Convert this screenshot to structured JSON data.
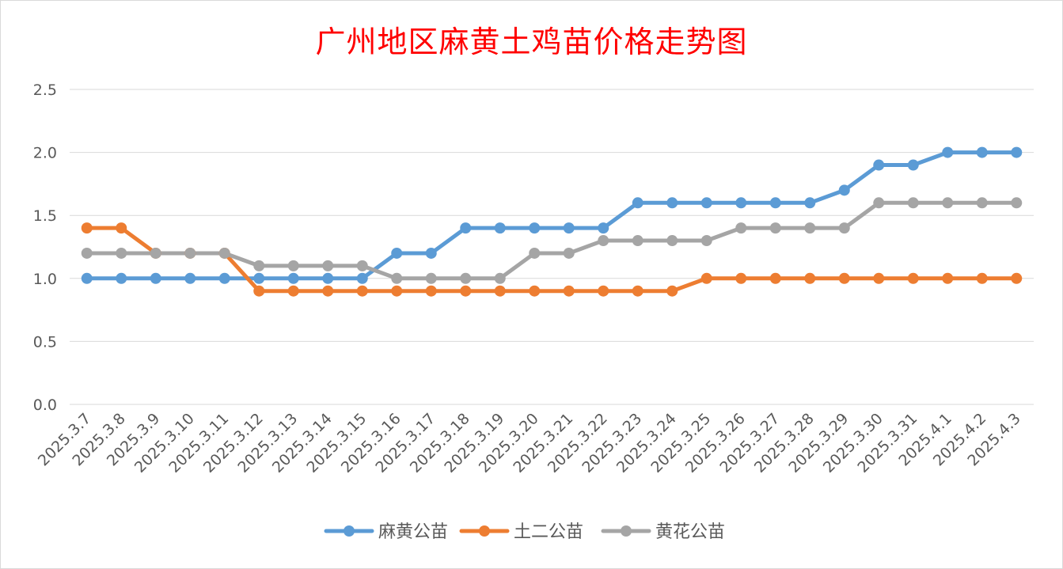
{
  "chart_data": {
    "type": "line",
    "title": "广州地区麻黄土鸡苗价格走势图",
    "xlabel": "",
    "ylabel": "",
    "ylim": [
      0,
      2.5
    ],
    "yticks": [
      "0.0",
      "0.5",
      "1.0",
      "1.5",
      "2.0",
      "2.5"
    ],
    "grid": true,
    "legend_position": "bottom",
    "categories": [
      "2025.3.7",
      "2025.3.8",
      "2025.3.9",
      "2025.3.10",
      "2025.3.11",
      "2025.3.12",
      "2025.3.13",
      "2025.3.14",
      "2025.3.15",
      "2025.3.16",
      "2025.3.17",
      "2025.3.18",
      "2025.3.19",
      "2025.3.20",
      "2025.3.21",
      "2025.3.22",
      "2025.3.23",
      "2025.3.24",
      "2025.3.25",
      "2025.3.26",
      "2025.3.27",
      "2025.3.28",
      "2025.3.29",
      "2025.3.30",
      "2025.3.31",
      "2025.4.1",
      "2025.4.2",
      "2025.4.3"
    ],
    "series": [
      {
        "name": "麻黄公苗",
        "color": "#5b9bd5",
        "values": [
          1.0,
          1.0,
          1.0,
          1.0,
          1.0,
          1.0,
          1.0,
          1.0,
          1.0,
          1.2,
          1.2,
          1.4,
          1.4,
          1.4,
          1.4,
          1.4,
          1.6,
          1.6,
          1.6,
          1.6,
          1.6,
          1.6,
          1.7,
          1.9,
          1.9,
          2.0,
          2.0,
          2.0
        ]
      },
      {
        "name": "土二公苗",
        "color": "#ed7d31",
        "values": [
          1.4,
          1.4,
          1.2,
          1.2,
          1.2,
          0.9,
          0.9,
          0.9,
          0.9,
          0.9,
          0.9,
          0.9,
          0.9,
          0.9,
          0.9,
          0.9,
          0.9,
          0.9,
          1.0,
          1.0,
          1.0,
          1.0,
          1.0,
          1.0,
          1.0,
          1.0,
          1.0,
          1.0
        ]
      },
      {
        "name": "黄花公苗",
        "color": "#a5a5a5",
        "values": [
          1.2,
          1.2,
          1.2,
          1.2,
          1.2,
          1.1,
          1.1,
          1.1,
          1.1,
          1.0,
          1.0,
          1.0,
          1.0,
          1.2,
          1.2,
          1.3,
          1.3,
          1.3,
          1.3,
          1.4,
          1.4,
          1.4,
          1.4,
          1.6,
          1.6,
          1.6,
          1.6,
          1.6
        ]
      }
    ]
  }
}
